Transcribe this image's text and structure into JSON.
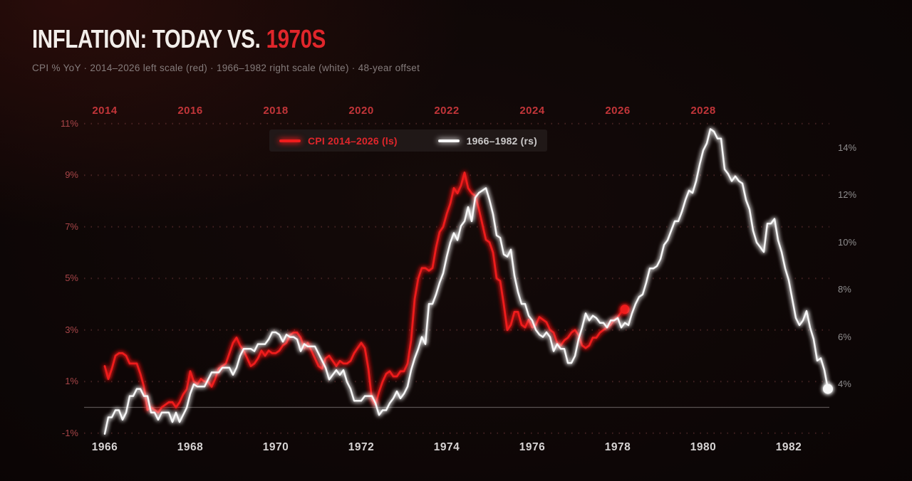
{
  "header": {
    "title_main": "INFLATION: TODAY VS.",
    "title_accent": "1970S",
    "subtitle": "CPI % YoY · 2014–2026 left scale (red) · 1966–1982 right scale (white) · 48-year offset"
  },
  "palette": {
    "bg_mid": "#140a09",
    "bg_dark": "#0b0505",
    "bg_edge": "#040202",
    "title_white": "#f2eeea",
    "accent_red": "#e0262b",
    "subtitle_gray": "#857c7c",
    "line_red": "#ee1c1c",
    "line_white": "#f7f7f7",
    "axis_left_red": "#a84548",
    "axis_right_gray": "#8f8d8e",
    "year_top_red": "#c23539",
    "year_bottom_gray": "#d7d4d4",
    "grid_dot": "rgba(198,104,104,0.30)",
    "zero_line": "rgba(152,144,144,0.55)",
    "legend_bg": "rgba(36,28,28,0.78)",
    "legend_red": "#e0262b",
    "legend_white": "#cbc9c9"
  },
  "chart_data": {
    "type": "line",
    "title": "INFLATION: TODAY VS. 1970S",
    "subtitle": "CPI % YoY · 2014–2026 left scale (red) · 1966–1982 right scale (white) · 48-year offset",
    "offset_years": 48,
    "grid": "dotted horizontal at left-axis ticks, solid line at 0% (left scale)",
    "legend_position": "top-center",
    "legend": [
      {
        "label": "CPI 2014–2026 (ls)",
        "color_key": "line_red"
      },
      {
        "label": "1966–1982 (rs)",
        "color_key": "line_white"
      }
    ],
    "x_top": {
      "years": [
        2014,
        2016,
        2018,
        2020,
        2022,
        2024,
        2026,
        2028
      ],
      "color_key": "year_top_red"
    },
    "x_bottom": {
      "years": [
        1966,
        1968,
        1970,
        1972,
        1974,
        1976,
        1978,
        1980,
        1982
      ],
      "color_key": "year_bottom_gray"
    },
    "y_left": {
      "labels": [
        "11%",
        "9%",
        "7%",
        "5%",
        "3%",
        "1%",
        "-1%"
      ],
      "values": [
        11,
        9,
        7,
        5,
        3,
        1,
        -1
      ],
      "range": [
        -1.5,
        11.5
      ]
    },
    "y_right": {
      "labels": [
        "14%",
        "12%",
        "10%",
        "8%",
        "6%",
        "4%"
      ],
      "values": [
        14,
        12,
        10,
        8,
        6,
        4
      ],
      "range": [
        2.5,
        15.5
      ]
    },
    "series": [
      {
        "name": "CPI 2014–2026 (ls)",
        "axis": "left",
        "color_key": "line_red",
        "start_year": 2014,
        "frequency": "monthly",
        "end_dot": true,
        "values": [
          1.6,
          1.1,
          1.5,
          2.0,
          2.1,
          2.1,
          2.0,
          1.7,
          1.7,
          1.7,
          1.3,
          0.8,
          -0.1,
          0.0,
          -0.1,
          -0.2,
          0.0,
          0.1,
          0.2,
          0.2,
          0.0,
          0.2,
          0.5,
          0.7,
          1.4,
          1.0,
          0.9,
          1.1,
          1.0,
          1.0,
          0.8,
          1.1,
          1.5,
          1.6,
          1.7,
          2.1,
          2.5,
          2.7,
          2.4,
          2.2,
          1.9,
          1.6,
          1.7,
          1.9,
          2.2,
          2.0,
          2.2,
          2.1,
          2.1,
          2.2,
          2.4,
          2.5,
          2.8,
          2.9,
          2.9,
          2.7,
          2.3,
          2.5,
          2.2,
          1.9,
          1.6,
          1.5,
          1.9,
          2.0,
          1.8,
          1.6,
          1.8,
          1.7,
          1.7,
          1.8,
          2.1,
          2.3,
          2.5,
          2.3,
          1.5,
          0.3,
          0.1,
          0.6,
          1.0,
          1.3,
          1.4,
          1.2,
          1.2,
          1.4,
          1.4,
          1.7,
          2.6,
          4.2,
          5.0,
          5.4,
          5.4,
          5.3,
          5.4,
          6.2,
          6.8,
          7.0,
          7.5,
          7.9,
          8.5,
          8.3,
          8.6,
          9.1,
          8.5,
          8.3,
          8.2,
          7.7,
          7.1,
          6.5,
          6.4,
          6.0,
          5.0,
          4.9,
          4.0,
          3.0,
          3.2,
          3.7,
          3.7,
          3.2,
          3.1,
          3.4,
          3.1,
          3.2,
          3.5,
          3.4,
          3.3,
          3.0,
          2.9,
          2.5,
          2.4,
          2.6,
          2.7,
          2.9,
          3.0,
          2.8,
          2.4,
          2.3,
          2.4,
          2.7,
          2.7,
          2.9,
          3.0,
          3.1,
          3.2,
          3.4,
          3.5,
          3.7,
          3.8
        ]
      },
      {
        "name": "1966–1982 (rs)",
        "axis": "right",
        "color_key": "line_white",
        "start_year": 1966,
        "frequency": "monthly",
        "end_dot": true,
        "values": [
          1.9,
          2.6,
          2.6,
          2.9,
          2.9,
          2.5,
          2.8,
          3.5,
          3.5,
          3.8,
          3.8,
          3.5,
          3.5,
          2.8,
          2.8,
          2.5,
          2.8,
          2.8,
          2.8,
          2.4,
          2.8,
          2.4,
          2.7,
          3.0,
          3.6,
          4.0,
          3.9,
          3.9,
          3.9,
          4.2,
          4.5,
          4.5,
          4.5,
          4.7,
          4.7,
          4.7,
          4.4,
          4.7,
          5.2,
          5.5,
          5.5,
          5.5,
          5.4,
          5.7,
          5.7,
          5.7,
          5.9,
          6.2,
          6.2,
          6.1,
          5.8,
          6.1,
          6.0,
          6.0,
          5.9,
          5.4,
          5.7,
          5.6,
          5.6,
          5.6,
          5.3,
          5.0,
          4.7,
          4.2,
          4.4,
          4.6,
          4.4,
          4.6,
          4.1,
          3.8,
          3.3,
          3.3,
          3.3,
          3.5,
          3.5,
          3.5,
          3.2,
          2.7,
          2.9,
          2.9,
          3.2,
          3.4,
          3.7,
          3.4,
          3.6,
          3.9,
          4.6,
          5.1,
          5.5,
          6.0,
          5.7,
          7.4,
          7.4,
          7.8,
          8.3,
          8.7,
          9.4,
          10.0,
          10.4,
          10.1,
          10.7,
          10.9,
          11.5,
          10.9,
          11.9,
          12.1,
          12.2,
          12.3,
          11.8,
          11.2,
          10.3,
          10.2,
          9.5,
          9.4,
          9.7,
          8.6,
          7.9,
          7.4,
          7.4,
          6.9,
          6.7,
          6.3,
          6.1,
          6.0,
          6.2,
          6.0,
          5.4,
          5.7,
          5.5,
          5.5,
          4.9,
          4.9,
          5.2,
          5.9,
          6.4,
          7.0,
          6.7,
          6.9,
          6.8,
          6.6,
          6.6,
          6.4,
          6.7,
          6.7,
          6.8,
          6.4,
          6.6,
          6.5,
          7.0,
          7.4,
          7.7,
          7.8,
          8.3,
          8.9,
          8.9,
          9.0,
          9.3,
          9.9,
          10.1,
          10.5,
          10.9,
          10.9,
          11.3,
          11.8,
          12.2,
          12.1,
          12.6,
          13.3,
          13.9,
          14.2,
          14.8,
          14.7,
          14.4,
          14.4,
          13.1,
          12.9,
          12.6,
          12.8,
          12.6,
          12.5,
          11.8,
          11.4,
          10.5,
          10.0,
          9.8,
          9.6,
          10.8,
          10.8,
          11.0,
          10.1,
          9.6,
          8.9,
          8.4,
          7.6,
          6.8,
          6.5,
          6.7,
          7.1,
          6.4,
          5.9,
          5.0,
          5.1,
          4.6,
          3.8
        ]
      }
    ]
  }
}
